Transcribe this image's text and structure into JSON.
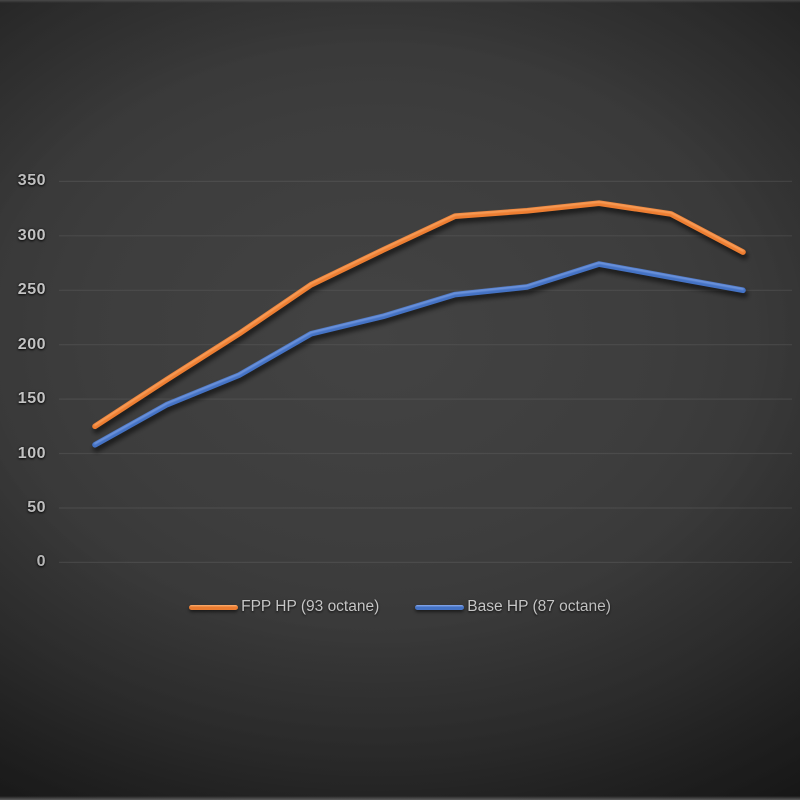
{
  "chart_data": {
    "type": "line",
    "title": "",
    "xlabel": "",
    "ylabel": "",
    "x_axis_labels_visible": false,
    "x": [
      1,
      2,
      3,
      4,
      5,
      6,
      7,
      8,
      9,
      10
    ],
    "series": [
      {
        "name": "FPP HP (93 octane)",
        "color": "#ED7D31",
        "highlight": "#ffb272",
        "values": [
          125,
          168,
          210,
          255,
          287,
          318,
          323,
          330,
          320,
          285
        ]
      },
      {
        "name": "Base HP (87 octane)",
        "color": "#4472C4",
        "highlight": "#8aacee",
        "values": [
          108,
          145,
          172,
          210,
          226,
          246,
          253,
          274,
          262,
          250
        ]
      }
    ],
    "y_ticks": [
      350,
      300,
      250,
      200,
      150,
      100,
      50,
      0
    ],
    "ylim": [
      0,
      350
    ],
    "grid": "horizontal",
    "legend_position": "bottom"
  },
  "colors": {
    "background_center": "#434343",
    "background_edge": "#121212",
    "gridline": "#5a5a5a",
    "tick_text": "#c3c3c3",
    "legend_text": "#c6c6c6"
  }
}
